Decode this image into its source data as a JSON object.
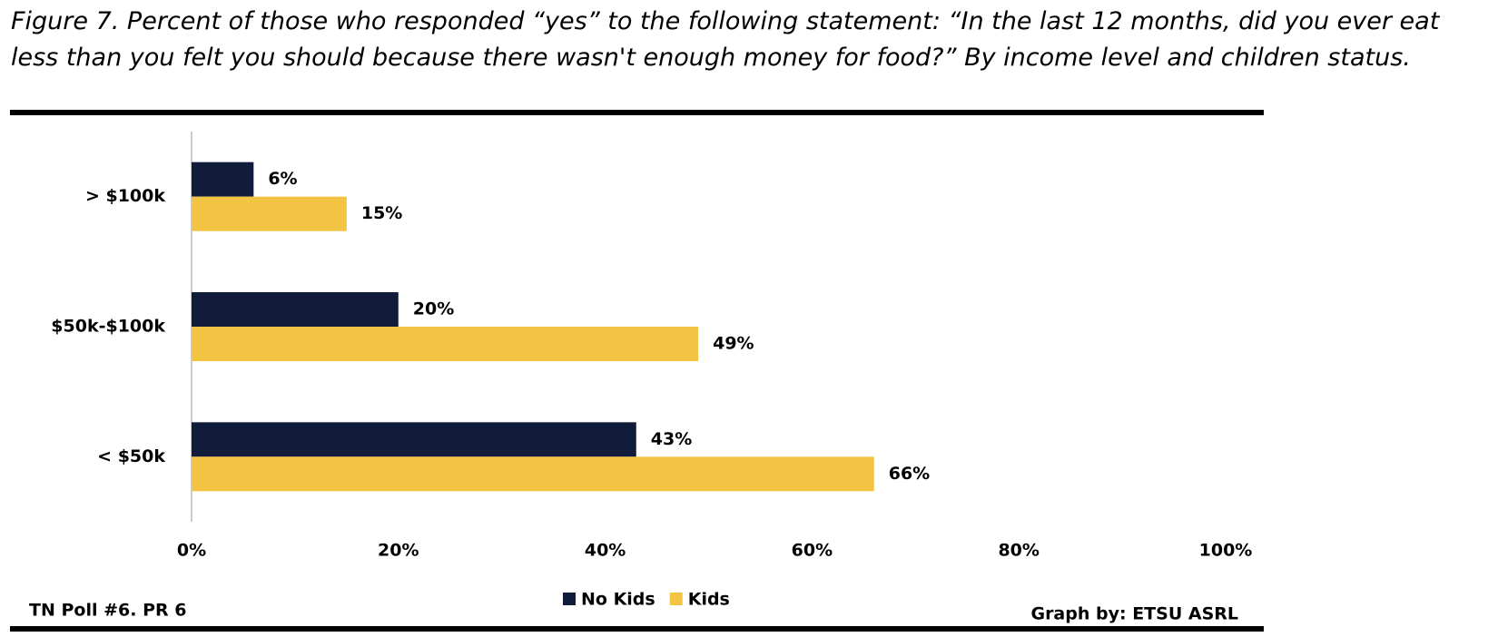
{
  "chart_data": {
    "type": "hbar",
    "title": "Figure 7. Percent of those who responded “yes” to the following statement: “In the last 12 months, did you ever eat less than you felt you should because there wasn't enough money for food?” By income level and children status.",
    "categories": [
      "> $100k",
      "$50k-$100k",
      "< $50k"
    ],
    "series": [
      {
        "name": "No Kids",
        "color": "#111c3a",
        "values": [
          6,
          20,
          43
        ],
        "value_labels": [
          "6%",
          "20%",
          "43%"
        ]
      },
      {
        "name": "Kids",
        "color": "#f3c343",
        "values": [
          15,
          49,
          66
        ],
        "value_labels": [
          "15%",
          "49%",
          "66%"
        ]
      }
    ],
    "xlim": [
      0,
      100
    ],
    "xticks": [
      {
        "value": 0,
        "label": "0%"
      },
      {
        "value": 20,
        "label": "20%"
      },
      {
        "value": 40,
        "label": "40%"
      },
      {
        "value": 60,
        "label": "60%"
      },
      {
        "value": 80,
        "label": "80%"
      },
      {
        "value": 100,
        "label": "100%"
      }
    ],
    "grid": false,
    "legend": "bottom",
    "source": "TN Poll #6. PR 6",
    "credit": "Graph by: ETSU ASRL"
  }
}
